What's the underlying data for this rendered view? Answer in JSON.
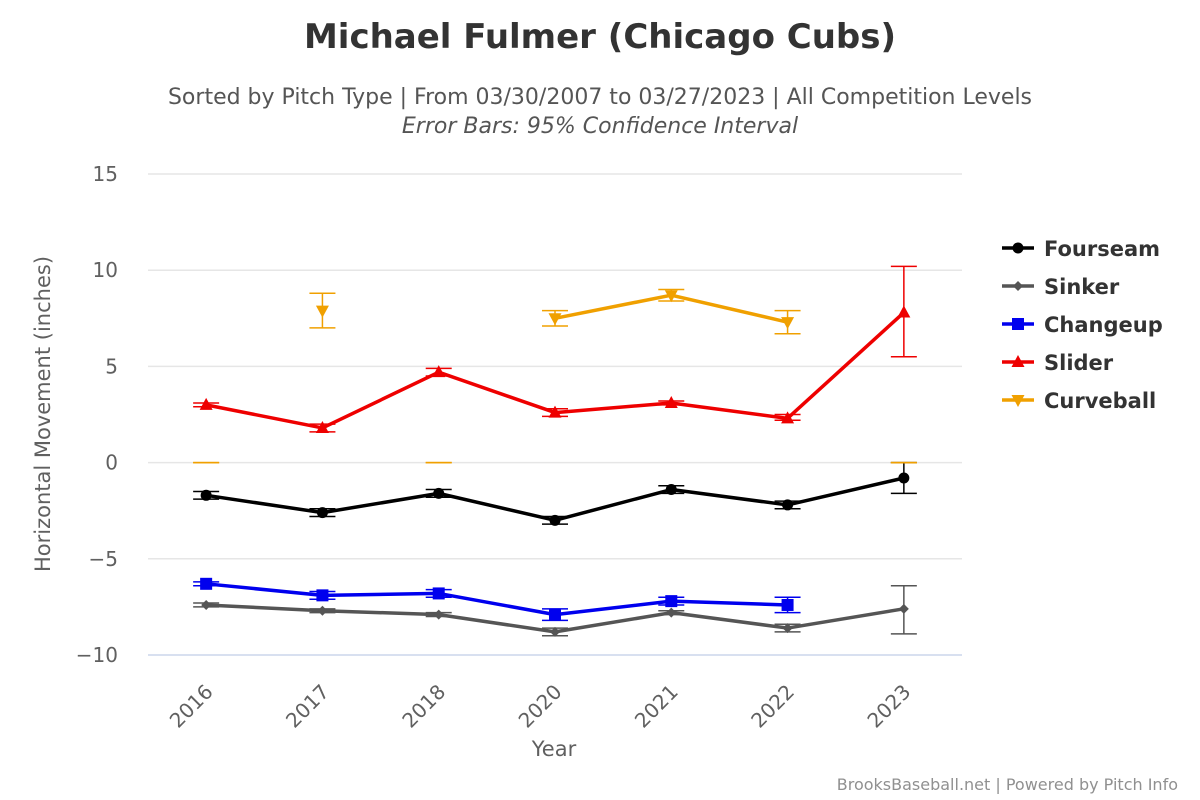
{
  "chart_data": {
    "type": "line",
    "title": "Michael Fulmer (Chicago Cubs)",
    "subtitle": "Sorted by Pitch Type | From 03/30/2007 to 03/27/2023 | All Competition Levels",
    "subtitle2": "Error Bars: 95% Confidence Interval",
    "xlabel": "Year",
    "ylabel": "Horizontal Movement (inches)",
    "ylim": [
      -10,
      15
    ],
    "yticks": [
      -10,
      -5,
      0,
      5,
      10,
      15
    ],
    "ytick_labels": [
      "−10",
      "−5",
      "0",
      "5",
      "10",
      "15"
    ],
    "categories": [
      "2016",
      "2017",
      "2018",
      "2020",
      "2021",
      "2022",
      "2023"
    ],
    "grid": true,
    "legend_position": "right",
    "series": [
      {
        "name": "Fourseam",
        "color": "#000000",
        "marker": "circle",
        "values": [
          -1.7,
          -2.6,
          -1.6,
          -3.0,
          -1.4,
          -2.2,
          -0.8
        ],
        "error_low": [
          -1.9,
          -2.8,
          -1.8,
          -3.2,
          -1.6,
          -2.4,
          -1.6
        ],
        "error_high": [
          -1.5,
          -2.4,
          -1.4,
          -2.8,
          -1.2,
          -2.0,
          0.0
        ]
      },
      {
        "name": "Sinker",
        "color": "#555555",
        "marker": "diamond",
        "values": [
          -7.4,
          -7.7,
          -7.9,
          -8.8,
          -7.8,
          -8.6,
          -7.6
        ],
        "error_low": [
          -7.5,
          -7.8,
          -8.0,
          -9.0,
          -7.9,
          -8.8,
          -8.9
        ],
        "error_high": [
          -7.3,
          -7.6,
          -7.8,
          -8.6,
          -7.7,
          -8.4,
          -6.4
        ]
      },
      {
        "name": "Changeup",
        "color": "#0000ee",
        "marker": "square",
        "values": [
          -6.3,
          -6.9,
          -6.8,
          -7.9,
          -7.2,
          -7.4,
          null
        ],
        "error_low": [
          -6.4,
          -7.1,
          -7.0,
          -8.2,
          -7.4,
          -7.8,
          null
        ],
        "error_high": [
          -6.2,
          -6.7,
          -6.6,
          -7.6,
          -7.0,
          -7.0,
          null
        ]
      },
      {
        "name": "Slider",
        "color": "#ee0000",
        "marker": "triangle",
        "values": [
          3.0,
          1.8,
          4.7,
          2.6,
          3.1,
          2.3,
          7.8
        ],
        "error_low": [
          2.9,
          1.6,
          4.5,
          2.4,
          3.0,
          2.2,
          5.5
        ],
        "error_high": [
          3.1,
          2.0,
          4.9,
          2.8,
          3.2,
          2.5,
          10.2
        ]
      },
      {
        "name": "Curveball",
        "color": "#f0a000",
        "marker": "triangle-down",
        "values": [
          0.0,
          7.9,
          0.0,
          7.5,
          8.7,
          7.3,
          0.0
        ],
        "error_low": [
          0.0,
          7.0,
          0.0,
          7.1,
          8.4,
          6.7,
          0.0
        ],
        "error_high": [
          0.0,
          8.8,
          0.0,
          7.9,
          9.0,
          7.9,
          0.0
        ],
        "line_segments": [
          [
            3,
            5
          ]
        ]
      }
    ]
  },
  "credits": "BrooksBaseball.net | Powered by Pitch Info"
}
